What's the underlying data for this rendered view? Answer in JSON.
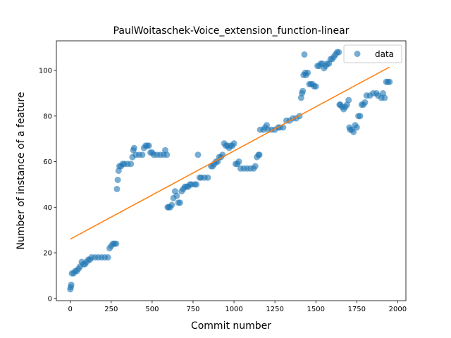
{
  "chart_data": {
    "type": "scatter",
    "title": "PaulWoitaschek-Voice_extension_function-linear",
    "xlabel": "Commit number",
    "ylabel": "Number of instance of a feature",
    "xlim": [
      -85,
      2050
    ],
    "ylim": [
      -1,
      113
    ],
    "xticks": [
      0,
      250,
      500,
      750,
      1000,
      1250,
      1500,
      1750,
      2000
    ],
    "yticks": [
      0,
      20,
      40,
      60,
      80,
      100
    ],
    "grid": false,
    "legend": {
      "placement": "top-right",
      "entries": [
        "data"
      ]
    },
    "colors": {
      "data": "#1f77b4",
      "fit": "#ff7f0e"
    },
    "series": [
      {
        "name": "data",
        "kind": "scatter",
        "points": [
          [
            0,
            4
          ],
          [
            3,
            5
          ],
          [
            6,
            6
          ],
          [
            10,
            11
          ],
          [
            20,
            11
          ],
          [
            30,
            12
          ],
          [
            40,
            12
          ],
          [
            50,
            13
          ],
          [
            60,
            14
          ],
          [
            70,
            16
          ],
          [
            80,
            15
          ],
          [
            90,
            15
          ],
          [
            100,
            16
          ],
          [
            110,
            17
          ],
          [
            120,
            17
          ],
          [
            130,
            18
          ],
          [
            150,
            18
          ],
          [
            170,
            18
          ],
          [
            190,
            18
          ],
          [
            210,
            18
          ],
          [
            230,
            18
          ],
          [
            240,
            22
          ],
          [
            250,
            23
          ],
          [
            260,
            24
          ],
          [
            270,
            24
          ],
          [
            280,
            24
          ],
          [
            285,
            48
          ],
          [
            290,
            52
          ],
          [
            295,
            56
          ],
          [
            300,
            58
          ],
          [
            310,
            58
          ],
          [
            320,
            59
          ],
          [
            330,
            59
          ],
          [
            350,
            59
          ],
          [
            370,
            59
          ],
          [
            380,
            62
          ],
          [
            385,
            65
          ],
          [
            390,
            66
          ],
          [
            400,
            63
          ],
          [
            420,
            63
          ],
          [
            440,
            63
          ],
          [
            450,
            66
          ],
          [
            460,
            67
          ],
          [
            470,
            67
          ],
          [
            480,
            67
          ],
          [
            490,
            64
          ],
          [
            500,
            64
          ],
          [
            510,
            63
          ],
          [
            530,
            63
          ],
          [
            550,
            63
          ],
          [
            570,
            63
          ],
          [
            580,
            65
          ],
          [
            590,
            63
          ],
          [
            595,
            40
          ],
          [
            600,
            40
          ],
          [
            610,
            40
          ],
          [
            620,
            41
          ],
          [
            630,
            44
          ],
          [
            640,
            47
          ],
          [
            650,
            45
          ],
          [
            660,
            42
          ],
          [
            670,
            42
          ],
          [
            680,
            47
          ],
          [
            690,
            48
          ],
          [
            700,
            49
          ],
          [
            710,
            49
          ],
          [
            720,
            49
          ],
          [
            730,
            50
          ],
          [
            740,
            50
          ],
          [
            760,
            50
          ],
          [
            770,
            50
          ],
          [
            780,
            63
          ],
          [
            790,
            53
          ],
          [
            800,
            53
          ],
          [
            820,
            53
          ],
          [
            840,
            53
          ],
          [
            860,
            58
          ],
          [
            870,
            58
          ],
          [
            880,
            59
          ],
          [
            890,
            60
          ],
          [
            900,
            60
          ],
          [
            910,
            62
          ],
          [
            920,
            62
          ],
          [
            930,
            63
          ],
          [
            940,
            68
          ],
          [
            950,
            67
          ],
          [
            960,
            67
          ],
          [
            970,
            66
          ],
          [
            980,
            67
          ],
          [
            990,
            67
          ],
          [
            1000,
            68
          ],
          [
            1010,
            59
          ],
          [
            1020,
            59
          ],
          [
            1030,
            60
          ],
          [
            1040,
            57
          ],
          [
            1060,
            57
          ],
          [
            1080,
            57
          ],
          [
            1100,
            57
          ],
          [
            1120,
            57
          ],
          [
            1130,
            58
          ],
          [
            1140,
            62
          ],
          [
            1150,
            63
          ],
          [
            1155,
            63
          ],
          [
            1160,
            74
          ],
          [
            1180,
            74
          ],
          [
            1190,
            75
          ],
          [
            1200,
            76
          ],
          [
            1210,
            74
          ],
          [
            1230,
            74
          ],
          [
            1250,
            74
          ],
          [
            1270,
            75
          ],
          [
            1280,
            75
          ],
          [
            1300,
            75
          ],
          [
            1320,
            78
          ],
          [
            1340,
            78
          ],
          [
            1360,
            79
          ],
          [
            1380,
            79
          ],
          [
            1400,
            80
          ],
          [
            1410,
            88
          ],
          [
            1415,
            90
          ],
          [
            1420,
            91
          ],
          [
            1425,
            98
          ],
          [
            1430,
            107
          ],
          [
            1435,
            99
          ],
          [
            1440,
            98
          ],
          [
            1450,
            99
          ],
          [
            1460,
            94
          ],
          [
            1470,
            94
          ],
          [
            1480,
            94
          ],
          [
            1490,
            93
          ],
          [
            1500,
            93
          ],
          [
            1510,
            102
          ],
          [
            1520,
            102
          ],
          [
            1530,
            103
          ],
          [
            1540,
            103
          ],
          [
            1550,
            101
          ],
          [
            1560,
            102
          ],
          [
            1570,
            103
          ],
          [
            1580,
            103
          ],
          [
            1590,
            105
          ],
          [
            1600,
            105
          ],
          [
            1610,
            106
          ],
          [
            1620,
            107
          ],
          [
            1630,
            108
          ],
          [
            1640,
            108
          ],
          [
            1645,
            85
          ],
          [
            1650,
            85
          ],
          [
            1660,
            84
          ],
          [
            1670,
            83
          ],
          [
            1680,
            84
          ],
          [
            1690,
            85
          ],
          [
            1700,
            87
          ],
          [
            1705,
            75
          ],
          [
            1710,
            74
          ],
          [
            1720,
            74
          ],
          [
            1730,
            73
          ],
          [
            1740,
            76
          ],
          [
            1750,
            75
          ],
          [
            1760,
            80
          ],
          [
            1770,
            80
          ],
          [
            1780,
            85
          ],
          [
            1790,
            85
          ],
          [
            1800,
            86
          ],
          [
            1810,
            89
          ],
          [
            1830,
            89
          ],
          [
            1850,
            90
          ],
          [
            1870,
            90
          ],
          [
            1880,
            89
          ],
          [
            1900,
            88
          ],
          [
            1910,
            90
          ],
          [
            1920,
            88
          ],
          [
            1930,
            95
          ],
          [
            1940,
            95
          ],
          [
            1950,
            95
          ]
        ]
      },
      {
        "name": "",
        "kind": "line",
        "points": [
          [
            0,
            26
          ],
          [
            1950,
            101.5
          ]
        ]
      }
    ]
  }
}
